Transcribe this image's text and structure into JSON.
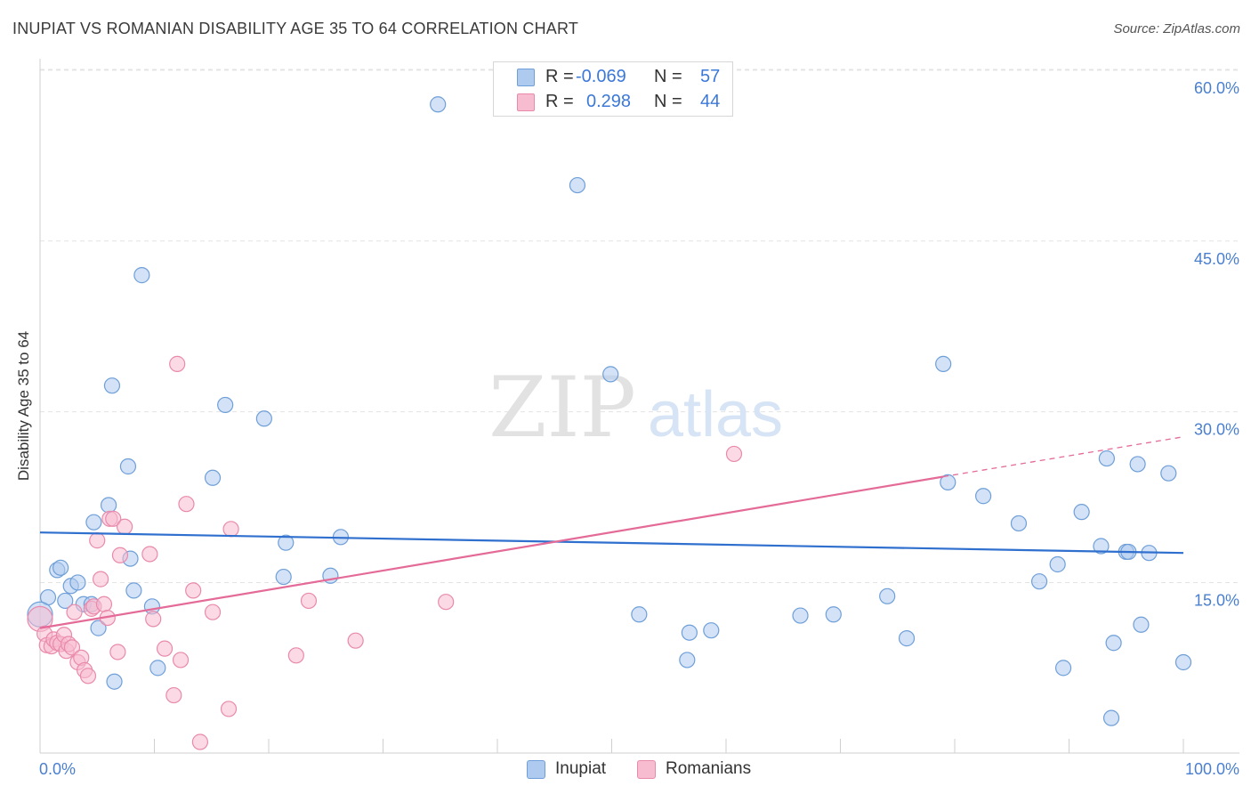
{
  "header": {
    "title": "INUPIAT VS ROMANIAN DISABILITY AGE 35 TO 64 CORRELATION CHART",
    "source": "Source: ZipAtlas.com"
  },
  "watermark": {
    "zip": "ZIP",
    "atlas": "atlas"
  },
  "legend_top": {
    "rows": [
      {
        "r_label": "R =",
        "r_value": "-0.069",
        "n_label": "N =",
        "n_value": "57"
      },
      {
        "r_label": "R =",
        "r_value": "0.298",
        "n_label": "N =",
        "n_value": "44"
      }
    ]
  },
  "legend_bottom": {
    "items": [
      {
        "label": "Inupiat"
      },
      {
        "label": "Romanians"
      }
    ]
  },
  "colors": {
    "blue_fill": "#aecbef",
    "blue_stroke": "#6f9fd8",
    "blue_line": "#2f6fce",
    "pink_fill": "#f7bcd0",
    "pink_stroke": "#e98aab",
    "pink_line": "#e46a97",
    "tick_label": "#4a7fd0",
    "grid": "#e3e3e3"
  },
  "chart_data": {
    "type": "scatter",
    "title": "INUPIAT VS ROMANIAN DISABILITY AGE 35 TO 64 CORRELATION CHART",
    "xlabel": "",
    "ylabel": "Disability Age 35 to 64",
    "xlim": [
      0,
      100
    ],
    "ylim": [
      0,
      62
    ],
    "x_tick_labels": [
      "0.0%",
      "100.0%"
    ],
    "y_ticks": [
      15,
      30,
      45,
      60
    ],
    "y_tick_labels": [
      "15.0%",
      "30.0%",
      "45.0%",
      "60.0%"
    ],
    "grid": true,
    "series": [
      {
        "name": "Inupiat",
        "r": -0.069,
        "n": 57,
        "trend": {
          "x0": 0,
          "y0": 19.4,
          "x1": 100,
          "y1": 17.6
        },
        "points": [
          [
            0.7,
            13.7
          ],
          [
            1.5,
            16.1
          ],
          [
            1.8,
            16.3
          ],
          [
            2.2,
            13.4
          ],
          [
            2.7,
            14.7
          ],
          [
            3.3,
            15.0
          ],
          [
            3.8,
            13.1
          ],
          [
            4.5,
            13.1
          ],
          [
            4.7,
            20.3
          ],
          [
            5.1,
            11.0
          ],
          [
            6.0,
            21.8
          ],
          [
            6.3,
            32.3
          ],
          [
            6.5,
            6.3
          ],
          [
            7.7,
            25.2
          ],
          [
            7.9,
            17.1
          ],
          [
            8.2,
            14.3
          ],
          [
            8.9,
            42.0
          ],
          [
            9.8,
            12.9
          ],
          [
            10.3,
            7.5
          ],
          [
            15.1,
            24.2
          ],
          [
            16.2,
            30.6
          ],
          [
            19.6,
            29.4
          ],
          [
            21.3,
            15.5
          ],
          [
            21.5,
            18.5
          ],
          [
            25.4,
            15.6
          ],
          [
            26.3,
            19.0
          ],
          [
            34.8,
            57.0
          ],
          [
            47.0,
            49.9
          ],
          [
            49.9,
            33.3
          ],
          [
            52.4,
            12.2
          ],
          [
            56.6,
            8.2
          ],
          [
            56.8,
            10.6
          ],
          [
            58.7,
            10.8
          ],
          [
            66.5,
            12.1
          ],
          [
            69.4,
            12.2
          ],
          [
            74.1,
            13.8
          ],
          [
            75.8,
            10.1
          ],
          [
            79.0,
            34.2
          ],
          [
            79.4,
            23.8
          ],
          [
            82.5,
            22.6
          ],
          [
            85.6,
            20.2
          ],
          [
            87.4,
            15.1
          ],
          [
            89.0,
            16.6
          ],
          [
            89.5,
            7.5
          ],
          [
            91.1,
            21.2
          ],
          [
            92.8,
            18.2
          ],
          [
            93.3,
            25.9
          ],
          [
            93.7,
            3.1
          ],
          [
            93.9,
            9.7
          ],
          [
            95.0,
            17.7
          ],
          [
            95.2,
            17.7
          ],
          [
            96.0,
            25.4
          ],
          [
            96.3,
            11.3
          ],
          [
            97.0,
            17.6
          ],
          [
            98.7,
            24.6
          ],
          [
            100.0,
            8.0
          ],
          [
            0.0,
            12.2
          ]
        ]
      },
      {
        "name": "Romanians",
        "r": 0.298,
        "n": 44,
        "trend": {
          "x0": 0,
          "y0": 11.0,
          "x1": 79,
          "y1": 24.3,
          "dash_x1": 100,
          "dash_y1": 27.8
        },
        "points": [
          [
            0.0,
            11.8
          ],
          [
            0.4,
            10.5
          ],
          [
            0.6,
            9.5
          ],
          [
            1.0,
            9.4
          ],
          [
            1.2,
            10.0
          ],
          [
            1.5,
            9.7
          ],
          [
            1.8,
            9.6
          ],
          [
            2.1,
            10.4
          ],
          [
            2.3,
            9.0
          ],
          [
            2.5,
            9.6
          ],
          [
            2.8,
            9.3
          ],
          [
            3.0,
            12.4
          ],
          [
            3.3,
            8.0
          ],
          [
            3.6,
            8.4
          ],
          [
            3.9,
            7.3
          ],
          [
            4.2,
            6.8
          ],
          [
            4.5,
            12.7
          ],
          [
            4.7,
            12.9
          ],
          [
            5.0,
            18.7
          ],
          [
            5.3,
            15.3
          ],
          [
            5.6,
            13.1
          ],
          [
            5.9,
            11.9
          ],
          [
            6.1,
            20.6
          ],
          [
            6.4,
            20.6
          ],
          [
            6.8,
            8.9
          ],
          [
            7.0,
            17.4
          ],
          [
            7.4,
            19.9
          ],
          [
            9.6,
            17.5
          ],
          [
            9.9,
            11.8
          ],
          [
            10.9,
            9.2
          ],
          [
            11.7,
            5.1
          ],
          [
            12.0,
            34.2
          ],
          [
            12.3,
            8.2
          ],
          [
            12.8,
            21.9
          ],
          [
            13.4,
            14.3
          ],
          [
            14.0,
            1.0
          ],
          [
            15.1,
            12.4
          ],
          [
            16.5,
            3.9
          ],
          [
            16.7,
            19.7
          ],
          [
            22.4,
            8.6
          ],
          [
            23.5,
            13.4
          ],
          [
            27.6,
            9.9
          ],
          [
            35.5,
            13.3
          ],
          [
            60.7,
            26.3
          ]
        ]
      }
    ]
  }
}
